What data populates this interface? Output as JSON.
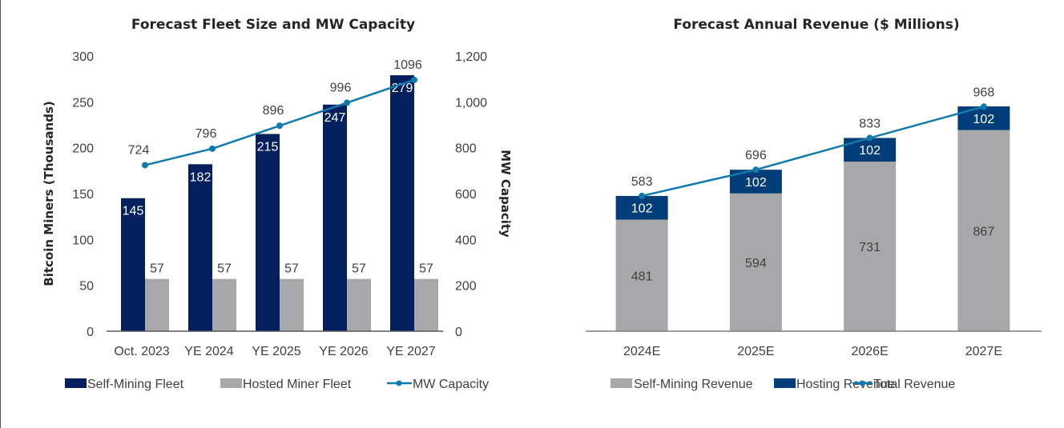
{
  "chart_data": [
    {
      "type": "bar",
      "title": "Forecast Fleet Size and MW Capacity",
      "categories": [
        "Oct. 2023",
        "YE 2024",
        "YE 2025",
        "YE 2026",
        "YE 2027"
      ],
      "series": [
        {
          "name": "Self-Mining Fleet",
          "kind": "bar",
          "axis": "left",
          "color": "#041F5E",
          "values": [
            145,
            182,
            215,
            247,
            279
          ]
        },
        {
          "name": "Hosted Miner Fleet",
          "kind": "bar",
          "axis": "left",
          "color": "#A8A8AA",
          "values": [
            57,
            57,
            57,
            57,
            57
          ]
        },
        {
          "name": "MW Capacity",
          "kind": "line",
          "axis": "right",
          "color": "#0F7AAD",
          "values": [
            724,
            796,
            896,
            996,
            1096
          ]
        }
      ],
      "ylabel": "Bitcoin Miners (Thousands)",
      "ylim": [
        0,
        300
      ],
      "yticks": [
        "0",
        "50",
        "100",
        "150",
        "200",
        "250",
        "300"
      ],
      "y2label": "MW Capacity",
      "y2lim": [
        0,
        1200
      ],
      "y2ticks": [
        "0",
        "200",
        "400",
        "600",
        "800",
        "1,000",
        "1,200"
      ],
      "grid": false,
      "legend": "bottom"
    },
    {
      "type": "bar",
      "stacked": true,
      "title": "Forecast Annual Revenue ($ Millions)",
      "categories": [
        "2024E",
        "2025E",
        "2026E",
        "2027E"
      ],
      "series": [
        {
          "name": "Self-Mining Revenue",
          "kind": "bar",
          "color": "#A8A8AA",
          "values": [
            481,
            594,
            731,
            867
          ]
        },
        {
          "name": "Hosting Revenue",
          "kind": "bar",
          "color": "#003D79",
          "values": [
            102,
            102,
            102,
            102
          ]
        },
        {
          "name": "Total Revenue",
          "kind": "line",
          "color": "#0F7AAD",
          "values": [
            583,
            696,
            833,
            968
          ]
        }
      ],
      "ylim": [
        0,
        1186
      ],
      "grid": false,
      "legend": "bottom"
    }
  ]
}
